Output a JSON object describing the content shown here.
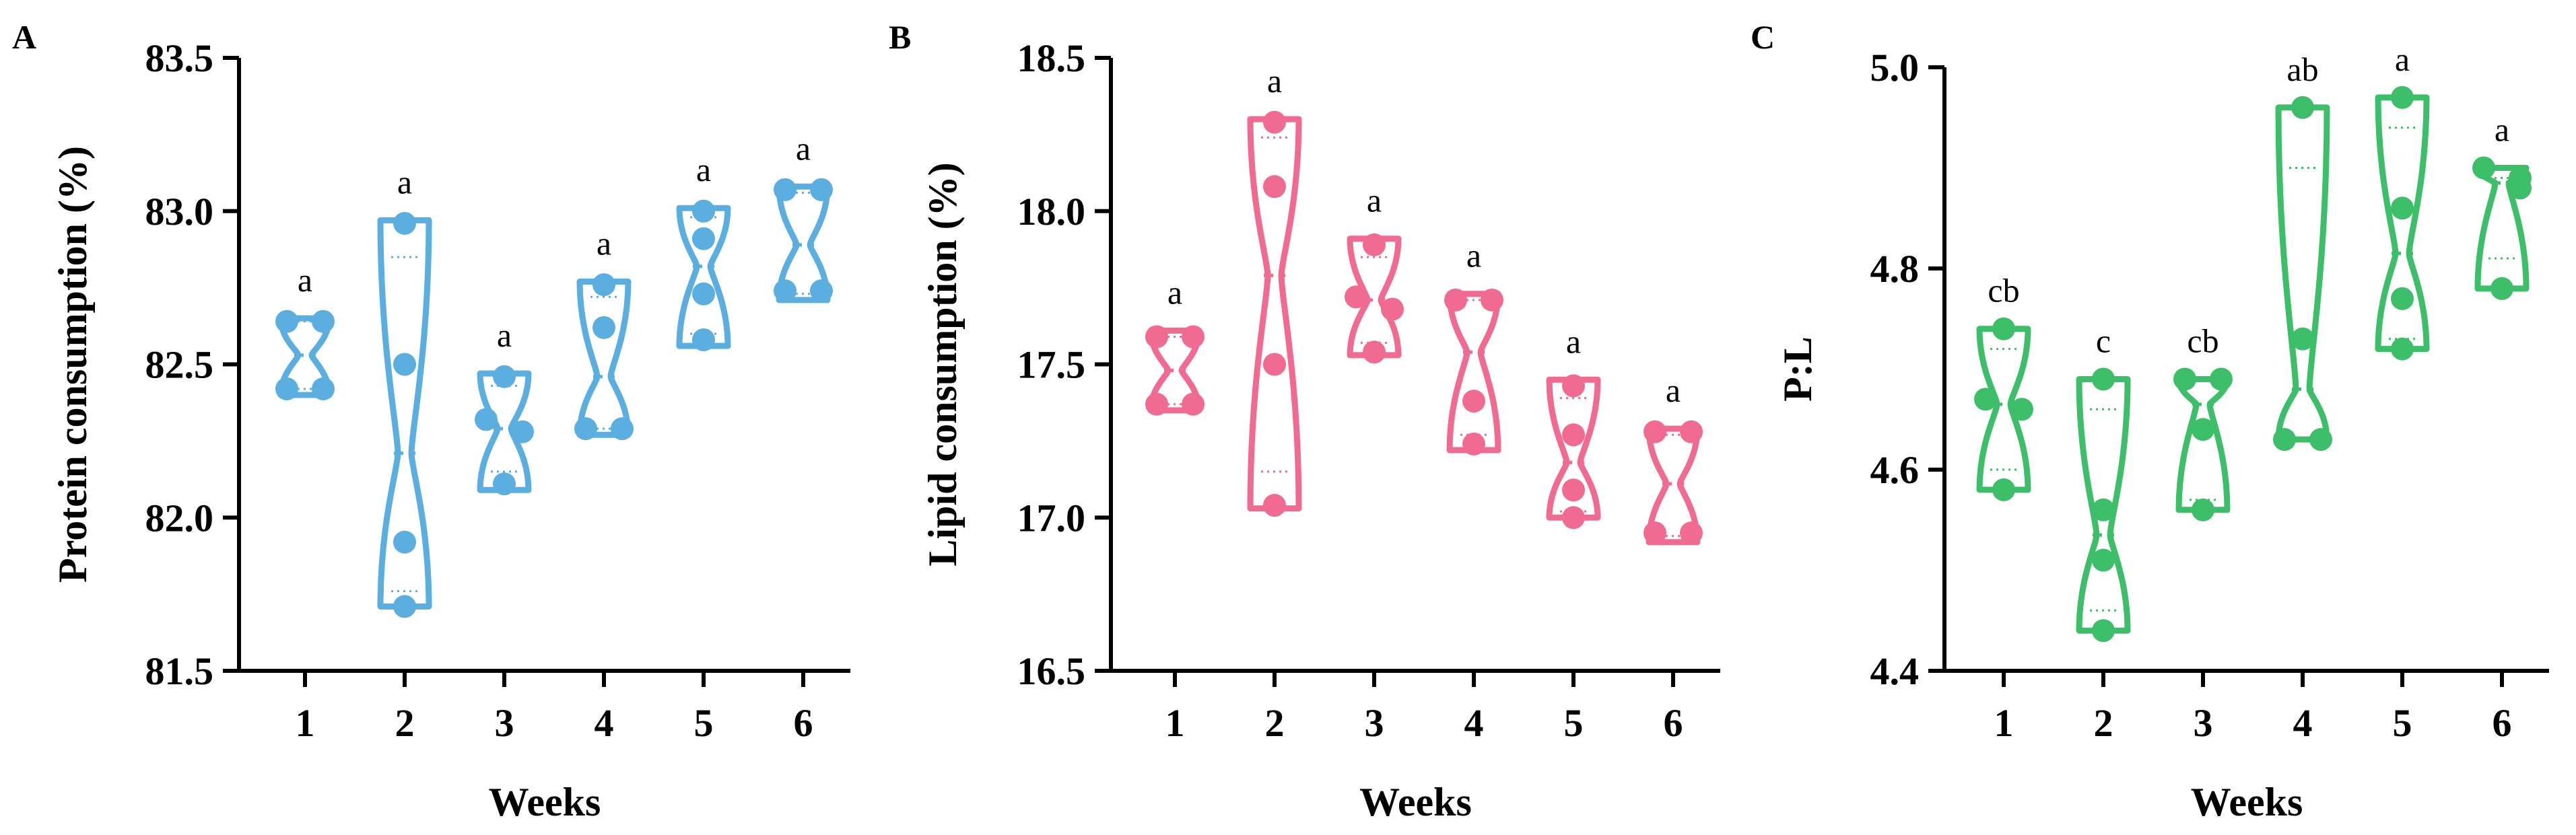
{
  "chart_data": [
    {
      "type": "violin",
      "panel": "A",
      "title": "",
      "xlabel": "Weeks",
      "ylabel": "Protein consumption (%)",
      "ylim": [
        81.5,
        83.5
      ],
      "yticks": [
        "81.5",
        "82.0",
        "82.5",
        "83.0",
        "83.5"
      ],
      "categories": [
        "1",
        "2",
        "3",
        "4",
        "5",
        "6"
      ],
      "color": "#5AAEE0",
      "groups": [
        {
          "week": "1",
          "points": [
            82.64,
            82.64,
            82.42,
            82.42
          ],
          "median": 82.53,
          "q1": 82.42,
          "q3": 82.64,
          "min": 82.4,
          "max": 82.65,
          "sig": "a"
        },
        {
          "week": "2",
          "points": [
            82.96,
            82.5,
            81.92,
            81.71
          ],
          "median": 82.21,
          "q1": 81.76,
          "q3": 82.85,
          "min": 81.71,
          "max": 82.97,
          "sig": "a"
        },
        {
          "week": "3",
          "points": [
            82.46,
            82.32,
            82.28,
            82.11
          ],
          "median": 82.29,
          "q1": 82.15,
          "q3": 82.43,
          "min": 82.09,
          "max": 82.47,
          "sig": "a"
        },
        {
          "week": "4",
          "points": [
            82.76,
            82.62,
            82.29,
            82.29
          ],
          "median": 82.46,
          "q1": 82.29,
          "q3": 82.72,
          "min": 82.27,
          "max": 82.77,
          "sig": "a"
        },
        {
          "week": "5",
          "points": [
            83.0,
            82.91,
            82.73,
            82.58
          ],
          "median": 82.82,
          "q1": 82.6,
          "q3": 82.98,
          "min": 82.56,
          "max": 83.01,
          "sig": "a"
        },
        {
          "week": "6",
          "points": [
            83.07,
            83.07,
            82.74,
            82.74
          ],
          "median": 82.89,
          "q1": 82.73,
          "q3": 83.06,
          "min": 82.71,
          "max": 83.08,
          "sig": "a"
        }
      ]
    },
    {
      "type": "violin",
      "panel": "B",
      "title": "",
      "xlabel": "Weeks",
      "ylabel": "Lipid consumption (%)",
      "ylim": [
        16.5,
        18.5
      ],
      "yticks": [
        "16.5",
        "17.0",
        "17.5",
        "18.0",
        "18.5"
      ],
      "categories": [
        "1",
        "2",
        "3",
        "4",
        "5",
        "6"
      ],
      "color": "#F06A92",
      "groups": [
        {
          "week": "1",
          "points": [
            17.59,
            17.59,
            17.37,
            17.37
          ],
          "median": 17.48,
          "q1": 17.37,
          "q3": 17.59,
          "min": 17.35,
          "max": 17.61,
          "sig": "a"
        },
        {
          "week": "2",
          "points": [
            18.29,
            18.08,
            17.5,
            17.04
          ],
          "median": 17.79,
          "q1": 17.15,
          "q3": 18.24,
          "min": 17.03,
          "max": 18.3,
          "sig": "a"
        },
        {
          "week": "3",
          "points": [
            17.89,
            17.72,
            17.68,
            17.54
          ],
          "median": 17.71,
          "q1": 17.57,
          "q3": 17.85,
          "min": 17.53,
          "max": 17.91,
          "sig": "a"
        },
        {
          "week": "4",
          "points": [
            17.71,
            17.71,
            17.38,
            17.24
          ],
          "median": 17.54,
          "q1": 17.27,
          "q3": 17.71,
          "min": 17.22,
          "max": 17.73,
          "sig": "a"
        },
        {
          "week": "5",
          "points": [
            17.43,
            17.27,
            17.09,
            17.0
          ],
          "median": 17.18,
          "q1": 17.02,
          "q3": 17.39,
          "min": 17.0,
          "max": 17.45,
          "sig": "a"
        },
        {
          "week": "6",
          "points": [
            17.28,
            17.28,
            16.95,
            16.95
          ],
          "median": 17.11,
          "q1": 16.94,
          "q3": 17.27,
          "min": 16.92,
          "max": 17.29,
          "sig": "a"
        }
      ]
    },
    {
      "type": "violin",
      "panel": "C",
      "title": "",
      "xlabel": "Weeks",
      "ylabel": "P:L",
      "ylim": [
        4.4,
        5.0
      ],
      "yticks": [
        "4.4",
        "4.6",
        "4.8",
        "5.0"
      ],
      "categories": [
        "1",
        "2",
        "3",
        "4",
        "5",
        "6"
      ],
      "color": "#3DBE68",
      "groups": [
        {
          "week": "1",
          "points": [
            4.74,
            4.67,
            4.66,
            4.58
          ],
          "median": 4.665,
          "q1": 4.6,
          "q3": 4.72,
          "min": 4.58,
          "max": 4.74,
          "sig": "cb"
        },
        {
          "week": "2",
          "points": [
            4.69,
            4.56,
            4.51,
            4.44
          ],
          "median": 4.535,
          "q1": 4.46,
          "q3": 4.66,
          "min": 4.44,
          "max": 4.69,
          "sig": "c"
        },
        {
          "week": "3",
          "points": [
            4.69,
            4.69,
            4.64,
            4.56
          ],
          "median": 4.665,
          "q1": 4.57,
          "q3": 4.69,
          "min": 4.56,
          "max": 4.69,
          "sig": "cb"
        },
        {
          "week": "4",
          "points": [
            4.96,
            4.73,
            4.63,
            4.63
          ],
          "median": 4.68,
          "q1": 4.63,
          "q3": 4.9,
          "min": 4.63,
          "max": 4.96,
          "sig": "ab"
        },
        {
          "week": "5",
          "points": [
            4.97,
            4.86,
            4.77,
            4.72
          ],
          "median": 4.815,
          "q1": 4.73,
          "q3": 4.94,
          "min": 4.72,
          "max": 4.97,
          "sig": "a"
        },
        {
          "week": "6",
          "points": [
            4.9,
            4.89,
            4.88,
            4.78
          ],
          "median": 4.885,
          "q1": 4.81,
          "q3": 4.89,
          "min": 4.78,
          "max": 4.9,
          "sig": "a"
        }
      ]
    }
  ]
}
